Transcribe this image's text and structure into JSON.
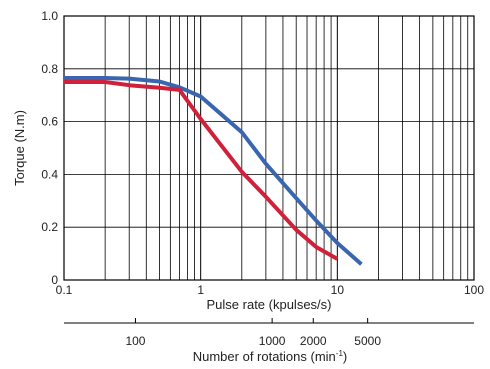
{
  "chart_data": {
    "type": "line",
    "x_scale": "log",
    "xlim": [
      0.1,
      100
    ],
    "ylim": [
      0,
      1.0
    ],
    "xlabel": "Pulse rate (kpulses/s)",
    "ylabel": "Torque (N.m)",
    "x_ticks": [
      {
        "value": 0.1,
        "label": "0.1"
      },
      {
        "value": 1,
        "label": "1"
      },
      {
        "value": 10,
        "label": "10"
      },
      {
        "value": 100,
        "label": "100"
      }
    ],
    "y_ticks": [
      {
        "value": 0,
        "label": "0"
      },
      {
        "value": 0.2,
        "label": "0.2"
      },
      {
        "value": 0.4,
        "label": "0.4"
      },
      {
        "value": 0.6,
        "label": "0.6"
      },
      {
        "value": 0.8,
        "label": "0.8"
      },
      {
        "value": 1.0,
        "label": "1.0"
      }
    ],
    "secondary_axis": {
      "label": "Number of rotations (min",
      "label_superscript": "-1",
      "label_suffix": ")",
      "scale": "log",
      "ticks": [
        {
          "value": 100,
          "label": "100"
        },
        {
          "value": 1000,
          "label": "1000"
        },
        {
          "value": 2000,
          "label": "2000"
        },
        {
          "value": 5000,
          "label": "5000"
        }
      ]
    },
    "grid": true,
    "series": [
      {
        "color": "#3a66b0",
        "points": [
          [
            0.1,
            0.765
          ],
          [
            0.2,
            0.765
          ],
          [
            0.3,
            0.763
          ],
          [
            0.5,
            0.752
          ],
          [
            0.7,
            0.73
          ],
          [
            1,
            0.695
          ],
          [
            2,
            0.56
          ],
          [
            3,
            0.44
          ],
          [
            5,
            0.31
          ],
          [
            7,
            0.225
          ],
          [
            10,
            0.14
          ],
          [
            15,
            0.06
          ]
        ]
      },
      {
        "color": "#d0203a",
        "points": [
          [
            0.1,
            0.75
          ],
          [
            0.2,
            0.75
          ],
          [
            0.3,
            0.738
          ],
          [
            0.5,
            0.728
          ],
          [
            0.7,
            0.72
          ],
          [
            1,
            0.61
          ],
          [
            2,
            0.41
          ],
          [
            3,
            0.315
          ],
          [
            5,
            0.19
          ],
          [
            7,
            0.125
          ],
          [
            10,
            0.08
          ]
        ]
      }
    ]
  }
}
